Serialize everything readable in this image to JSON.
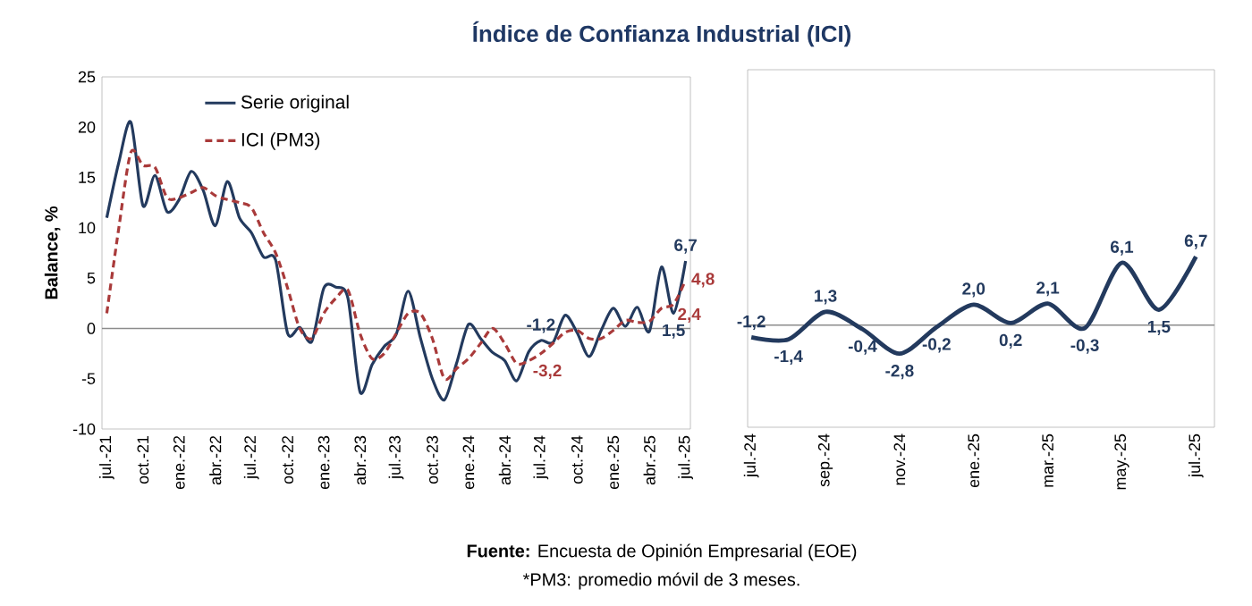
{
  "chart_data": [
    {
      "type": "line",
      "title": "Índice de Confianza Industrial (ICI)",
      "ylabel": "Balance, %",
      "annotations": [
        "**Fuente:** Encuesta de Opinión Empresarial (EOE)",
        "*PM3: promedio móvil de 3 meses."
      ],
      "categories": [
        "jul.-21",
        null,
        null,
        "oct.-21",
        null,
        null,
        "ene.-22",
        null,
        null,
        "abr.-22",
        null,
        null,
        "jul.-22",
        null,
        null,
        "oct.-22",
        null,
        null,
        "ene.-23",
        null,
        null,
        "abr.-23",
        null,
        null,
        "jul.-23",
        null,
        null,
        "oct.-23",
        null,
        null,
        "ene.-24",
        null,
        null,
        "abr.-24",
        null,
        null,
        "jul.-24",
        null,
        null,
        "oct.-24",
        null,
        null,
        "ene.-25",
        null,
        null,
        "abr.-25",
        null,
        null,
        "jul.-25"
      ],
      "ylim": [
        -10,
        25
      ],
      "yticks": [
        -10,
        -5,
        0,
        5,
        10,
        15,
        20,
        25
      ],
      "legend": "top",
      "ref_lines": [
        {
          "axis": "y",
          "value": 0,
          "color": "#8c8c8c"
        }
      ],
      "series": [
        {
          "name": "Serie original",
          "color": "#233a5e",
          "line_style": "solid",
          "values": [
            11,
            16.5,
            20.5,
            12.2,
            15.2,
            11.6,
            12.8,
            15.6,
            13.7,
            10.2,
            14.6,
            11,
            9.5,
            7.1,
            6.8,
            -0.5,
            0.1,
            -1.3,
            4.0,
            4.1,
            3.0,
            -6.3,
            -3.6,
            -1.8,
            -0.6,
            3.7,
            -0.9,
            -5.0,
            -7.1,
            -3.5,
            0.4,
            -1.0,
            -2.4,
            -3.2,
            -5.2,
            -2.3,
            -1.2,
            -1.4,
            1.3,
            -0.4,
            -2.8,
            -0.2,
            2.0,
            0.2,
            2.1,
            -0.3,
            6.1,
            1.5,
            6.7
          ],
          "value_labels": [
            null,
            null,
            null,
            null,
            null,
            null,
            null,
            null,
            null,
            null,
            null,
            null,
            null,
            null,
            null,
            null,
            null,
            null,
            null,
            null,
            null,
            null,
            null,
            null,
            null,
            null,
            null,
            null,
            null,
            null,
            null,
            null,
            null,
            null,
            null,
            null,
            "-1,2",
            null,
            null,
            null,
            null,
            null,
            null,
            null,
            null,
            null,
            null,
            "1,5",
            "6,7"
          ]
        },
        {
          "name": "ICI (PM3)",
          "color": "#a93a3a",
          "line_style": "dashed",
          "values": [
            1.5,
            10,
            17.5,
            16.2,
            16,
            13,
            13,
            13.5,
            14,
            13.2,
            12.8,
            12.5,
            12,
            9.5,
            7.5,
            4,
            0,
            -1,
            1.5,
            3,
            3.8,
            -0.5,
            -3,
            -2.5,
            -0.5,
            1.5,
            1.5,
            -1,
            -5,
            -4,
            -3,
            -1.5,
            0,
            -1.5,
            -3.5,
            -3.2,
            -2.5,
            -1.5,
            -0.4,
            -0.2,
            -1,
            -1,
            -0.2,
            0.8,
            0.6,
            0.7,
            2.0,
            2.4,
            4.8
          ],
          "value_labels": [
            null,
            null,
            null,
            null,
            null,
            null,
            null,
            null,
            null,
            null,
            null,
            null,
            null,
            null,
            null,
            null,
            null,
            null,
            null,
            null,
            null,
            null,
            null,
            null,
            null,
            null,
            null,
            null,
            null,
            null,
            null,
            null,
            null,
            null,
            null,
            "-3,2",
            null,
            null,
            null,
            null,
            null,
            null,
            null,
            null,
            null,
            null,
            null,
            "2,4",
            "4,8"
          ]
        }
      ]
    },
    {
      "type": "line",
      "categories": [
        "jul.-24",
        null,
        "sep.-24",
        null,
        "nov.-24",
        null,
        "ene.-25",
        null,
        "mar.-25",
        null,
        "may.-25",
        null,
        "jul.-25"
      ],
      "ylim": [
        -10,
        25
      ],
      "tick_labels": "x",
      "ref_lines": [
        {
          "axis": "y",
          "value": 0,
          "color": "#8c8c8c"
        }
      ],
      "series": [
        {
          "color": "#233a5e",
          "line_style": "solid",
          "values": [
            -1.2,
            -1.4,
            1.3,
            -0.4,
            -2.8,
            -0.2,
            2.0,
            0.2,
            2.1,
            -0.3,
            6.1,
            1.5,
            6.7
          ],
          "value_labels": [
            "-1,2",
            "-1,4",
            "1,3",
            "-0,4",
            "-2,8",
            "-0,2",
            "2,0",
            "0,2",
            "2,1",
            "-0,3",
            "6,1",
            "1,5",
            "6,7"
          ]
        }
      ]
    }
  ]
}
